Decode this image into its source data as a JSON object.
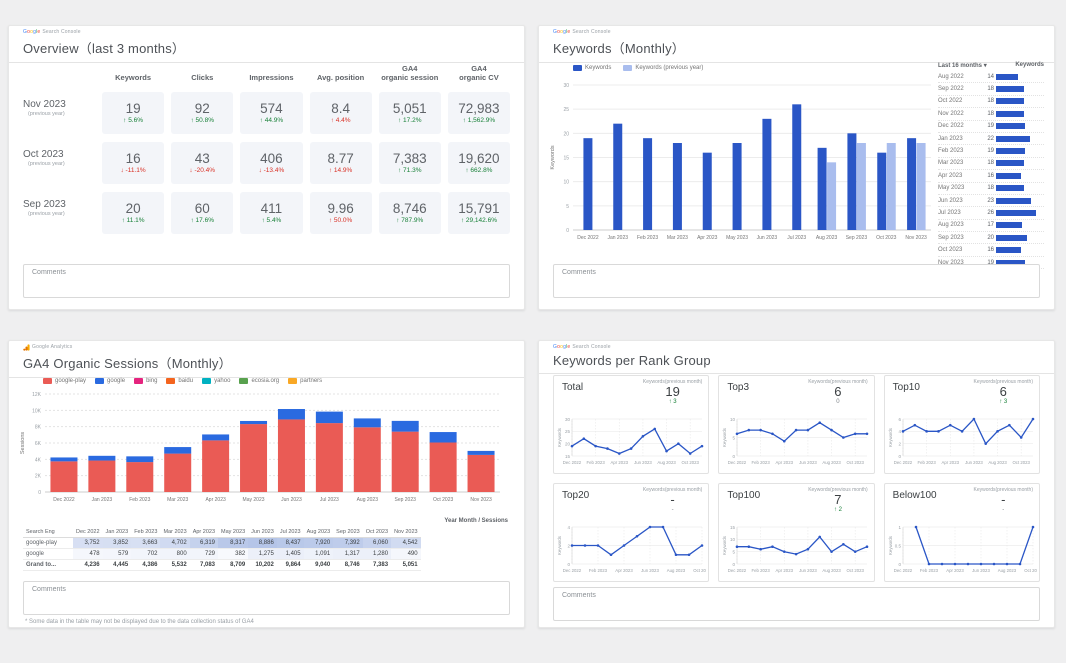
{
  "panels": {
    "overview": {
      "brand": "Google Search Console",
      "title": "Overview（last 3 months）",
      "comments_label": "Comments",
      "columns": [
        [
          "Keywords"
        ],
        [
          "Clicks"
        ],
        [
          "Impressions"
        ],
        [
          "Avg. position"
        ],
        [
          "GA4",
          "organic session"
        ],
        [
          "GA4",
          "organic CV"
        ]
      ],
      "rows": [
        {
          "label": "Nov 2023",
          "sublabel": "(previous year)",
          "cells": [
            {
              "value": "19",
              "arrow": "↑",
              "change": "5.6%",
              "tone": "good"
            },
            {
              "value": "92",
              "arrow": "↑",
              "change": "50.8%",
              "tone": "good"
            },
            {
              "value": "574",
              "arrow": "↑",
              "change": "44.9%",
              "tone": "good"
            },
            {
              "value": "8.4",
              "arrow": "↑",
              "change": "4.4%",
              "tone": "bad"
            },
            {
              "value": "5,051",
              "arrow": "↑",
              "change": "17.2%",
              "tone": "good"
            },
            {
              "value": "72,983",
              "arrow": "↑",
              "change": "1,562.9%",
              "tone": "good"
            }
          ]
        },
        {
          "label": "Oct 2023",
          "sublabel": "(previous year)",
          "cells": [
            {
              "value": "16",
              "arrow": "↓",
              "change": "-11.1%",
              "tone": "bad"
            },
            {
              "value": "43",
              "arrow": "↓",
              "change": "-20.4%",
              "tone": "bad"
            },
            {
              "value": "406",
              "arrow": "↓",
              "change": "-13.4%",
              "tone": "bad"
            },
            {
              "value": "8.77",
              "arrow": "↑",
              "change": "14.9%",
              "tone": "bad"
            },
            {
              "value": "7,383",
              "arrow": "↑",
              "change": "71.3%",
              "tone": "good"
            },
            {
              "value": "19,620",
              "arrow": "↑",
              "change": "662.8%",
              "tone": "good"
            }
          ]
        },
        {
          "label": "Sep 2023",
          "sublabel": "(previous year)",
          "cells": [
            {
              "value": "20",
              "arrow": "↑",
              "change": "11.1%",
              "tone": "good"
            },
            {
              "value": "60",
              "arrow": "↑",
              "change": "17.6%",
              "tone": "good"
            },
            {
              "value": "411",
              "arrow": "↑",
              "change": "5.4%",
              "tone": "good"
            },
            {
              "value": "9.96",
              "arrow": "↑",
              "change": "50.0%",
              "tone": "bad"
            },
            {
              "value": "8,746",
              "arrow": "↑",
              "change": "787.9%",
              "tone": "good"
            },
            {
              "value": "15,791",
              "arrow": "↑",
              "change": "29,142.6%",
              "tone": "good"
            }
          ]
        }
      ]
    },
    "keywords_monthly": {
      "brand": "Google Search Console",
      "title": "Keywords（Monthly）",
      "comments_label": "Comments",
      "list": {
        "header_period": "Last 16 months",
        "sort_icon": "▾",
        "header_metric": "Keywords",
        "bar_max": 26,
        "rows": [
          [
            "Aug 2022",
            14
          ],
          [
            "Sep 2022",
            18
          ],
          [
            "Oct 2022",
            18
          ],
          [
            "Nov 2022",
            18
          ],
          [
            "Dec 2022",
            19
          ],
          [
            "Jan 2023",
            22
          ],
          [
            "Feb 2023",
            19
          ],
          [
            "Mar 2023",
            18
          ],
          [
            "Apr 2023",
            16
          ],
          [
            "May 2023",
            18
          ],
          [
            "Jun 2023",
            23
          ],
          [
            "Jul 2023",
            26
          ],
          [
            "Aug 2023",
            17
          ],
          [
            "Sep 2023",
            20
          ],
          [
            "Oct 2023",
            16
          ],
          [
            "Nov 2023",
            19
          ]
        ]
      }
    },
    "ga4_sessions": {
      "brand": "Google Analytics",
      "title": "GA4 Organic Sessions（Monthly）",
      "comments_label": "Comments",
      "footnote": "* Some data in the table may not be displayed due to the data collection status of GA4",
      "table": {
        "caption": "Year Month / Sessions",
        "row_header": "Search Eng",
        "columns": [
          "Dec 2022",
          "Jan 2023",
          "Feb 2023",
          "Mar 2023",
          "Apr 2023",
          "May 2023",
          "Jun 2023",
          "Jul 2023",
          "Aug 2023",
          "Sep 2023",
          "Oct 2023",
          "Nov 2023"
        ],
        "rows": [
          {
            "label": "google-play",
            "bold": false,
            "values": [
              "3,752",
              "3,852",
              "3,663",
              "4,702",
              "6,319",
              "8,317",
              "8,886",
              "8,437",
              "7,920",
              "7,392",
              "6,060",
              "4,542"
            ]
          },
          {
            "label": "google",
            "bold": false,
            "values": [
              "478",
              "579",
              "702",
              "800",
              "729",
              "382",
              "1,275",
              "1,405",
              "1,091",
              "1,317",
              "1,280",
              "490"
            ]
          },
          {
            "label": "Grand to...",
            "bold": true,
            "values": [
              "4,236",
              "4,445",
              "4,386",
              "5,532",
              "7,083",
              "8,709",
              "10,202",
              "9,864",
              "9,040",
              "8,746",
              "7,383",
              "5,051"
            ]
          }
        ]
      }
    },
    "rank_groups": {
      "brand": "Google Search Console",
      "title": "Keywords per Rank Group",
      "comments_label": "Comments",
      "metric_label": "Keywords(previous month)"
    }
  },
  "chart_data": [
    {
      "id": "keywords-monthly-bar",
      "type": "bar",
      "title": "Keywords（Monthly）",
      "ylabel": "Keywords",
      "ylim": [
        0,
        30
      ],
      "yticks": [
        0,
        5,
        10,
        15,
        20,
        25,
        30
      ],
      "grid": true,
      "legend_position": "top",
      "categories": [
        "Dec 2022",
        "Jan 2023",
        "Feb 2023",
        "Mar 2023",
        "Apr 2023",
        "May 2023",
        "Jun 2023",
        "Jul 2023",
        "Aug 2023",
        "Sep 2023",
        "Oct 2023",
        "Nov 2023"
      ],
      "series": [
        {
          "name": "Keywords",
          "color": "#2a56c6",
          "values": [
            19,
            22,
            19,
            18,
            16,
            18,
            23,
            26,
            17,
            20,
            16,
            19
          ]
        },
        {
          "name": "Keywords (previous year)",
          "color": "#a9bdee",
          "values": [
            null,
            null,
            null,
            null,
            null,
            null,
            null,
            null,
            14,
            18,
            18,
            18
          ]
        }
      ]
    },
    {
      "id": "ga4-organic-sessions-stacked",
      "type": "bar",
      "subtype": "stacked",
      "title": "GA4 Organic Sessions（Monthly）",
      "ylabel": "Sessions",
      "ylim": [
        0,
        12000
      ],
      "yticks": [
        0,
        2000,
        4000,
        6000,
        8000,
        10000,
        12000
      ],
      "ytick_labels": [
        "0",
        "2K",
        "4K",
        "6K",
        "8K",
        "10K",
        "12K"
      ],
      "grid": true,
      "categories": [
        "Dec 2022",
        "Jan 2023",
        "Feb 2023",
        "Mar 2023",
        "Apr 2023",
        "May 2023",
        "Jun 2023",
        "Jul 2023",
        "Aug 2023",
        "Sep 2023",
        "Oct 2023",
        "Nov 2023"
      ],
      "series": [
        {
          "name": "google-play",
          "color": "#ea5b55",
          "values": [
            3752,
            3852,
            3663,
            4702,
            6319,
            8317,
            8886,
            8437,
            7920,
            7392,
            6060,
            4542
          ]
        },
        {
          "name": "google",
          "color": "#2a6ae0",
          "values": [
            478,
            579,
            702,
            800,
            729,
            382,
            1275,
            1405,
            1091,
            1317,
            1280,
            490
          ]
        }
      ],
      "legend": [
        {
          "name": "google-play",
          "color": "#ea5b55"
        },
        {
          "name": "google",
          "color": "#2a6ae0"
        },
        {
          "name": "bing",
          "color": "#e5247e"
        },
        {
          "name": "baidu",
          "color": "#f4641e"
        },
        {
          "name": "yahoo",
          "color": "#00b1c1"
        },
        {
          "name": "ecosia.org",
          "color": "#58a14e"
        },
        {
          "name": "partners",
          "color": "#f9a825"
        }
      ]
    },
    {
      "id": "keywords-per-rank-group",
      "type": "line",
      "title": "Keywords per Rank Group",
      "ylabel": "Keywords",
      "x_categories": [
        "Dec 2022",
        "Jan 2023",
        "Feb 2023",
        "Mar 2023",
        "Apr 2023",
        "May 2023",
        "Jun 2023",
        "Jul 2023",
        "Aug 2023",
        "Sep 2023",
        "Oct 2023",
        "Nov 2023"
      ],
      "xtick_labels": [
        "Dec 2022",
        "Feb 2023",
        "Apr 2023",
        "Jun 2023",
        "Aug 2023",
        "Oct 2023"
      ],
      "line_color": "#2a56c6",
      "cards": [
        {
          "name": "Total",
          "current": "19",
          "change": "↑ 3",
          "tone": "good",
          "ylim": [
            15,
            30
          ],
          "yticks": [
            15,
            20,
            25,
            30
          ],
          "values": [
            19,
            22,
            19,
            18,
            16,
            18,
            23,
            26,
            17,
            20,
            16,
            19
          ]
        },
        {
          "name": "Top3",
          "current": "6",
          "change": "0",
          "tone": "flat",
          "ylim": [
            0,
            10
          ],
          "yticks": [
            0,
            5,
            10
          ],
          "values": [
            6,
            7,
            7,
            6,
            4,
            7,
            7,
            9,
            7,
            5,
            6,
            6
          ]
        },
        {
          "name": "Top10",
          "current": "6",
          "change": "↑ 3",
          "tone": "good",
          "ylim": [
            0,
            6
          ],
          "yticks": [
            0,
            2,
            4,
            6
          ],
          "values": [
            4,
            5,
            4,
            4,
            5,
            4,
            6,
            2,
            4,
            5,
            3,
            6
          ]
        },
        {
          "name": "Top20",
          "current": "-",
          "change": "-",
          "tone": "flat",
          "ylim": [
            0,
            4
          ],
          "yticks": [
            0,
            2,
            4
          ],
          "values": [
            2,
            2,
            2,
            1,
            2,
            3,
            4,
            4,
            1,
            1,
            2
          ]
        },
        {
          "name": "Top100",
          "current": "7",
          "change": "↑ 2",
          "tone": "good",
          "ylim": [
            0,
            15
          ],
          "yticks": [
            0,
            5,
            10,
            15
          ],
          "values": [
            7,
            7,
            6,
            7,
            5,
            4,
            6,
            11,
            5,
            8,
            5,
            7
          ]
        },
        {
          "name": "Below100",
          "current": "-",
          "change": "-",
          "tone": "flat",
          "ylim": [
            0,
            1
          ],
          "yticks": [
            0,
            0.5,
            1
          ],
          "values": [
            null,
            1,
            0,
            0,
            0,
            0,
            0,
            0,
            0,
            0,
            1
          ]
        }
      ]
    },
    {
      "id": "keywords-last-16-months-list",
      "type": "table",
      "columns": [
        "Last 16 months",
        "Keywords"
      ],
      "bar_max": 26,
      "rows": [
        [
          "Aug 2022",
          14
        ],
        [
          "Sep 2022",
          18
        ],
        [
          "Oct 2022",
          18
        ],
        [
          "Nov 2022",
          18
        ],
        [
          "Dec 2022",
          19
        ],
        [
          "Jan 2023",
          22
        ],
        [
          "Feb 2023",
          19
        ],
        [
          "Mar 2023",
          18
        ],
        [
          "Apr 2023",
          16
        ],
        [
          "May 2023",
          18
        ],
        [
          "Jun 2023",
          23
        ],
        [
          "Jul 2023",
          26
        ],
        [
          "Aug 2023",
          17
        ],
        [
          "Sep 2023",
          20
        ],
        [
          "Oct 2023",
          16
        ],
        [
          "Nov 2023",
          19
        ]
      ]
    }
  ],
  "colors": {
    "good": "#188038",
    "bad": "#d93025",
    "flat": "#80868b",
    "bar_dark": "#2a56c6",
    "bar_light": "#a9bdee"
  }
}
